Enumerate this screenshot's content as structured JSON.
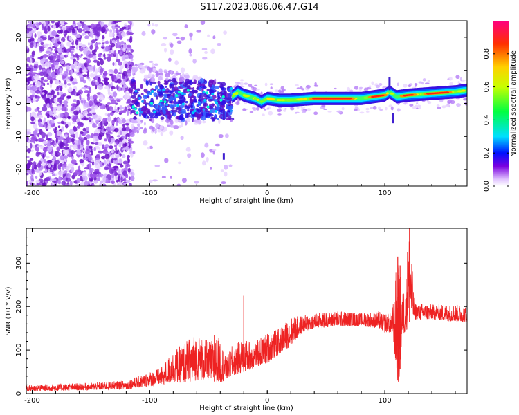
{
  "title": "S117.2023.086.06.47.G14",
  "chart_data": [
    {
      "type": "heatmap",
      "xlabel": "Height of straight line (km)",
      "ylabel": "Frequency (Hz)",
      "xlim": [
        -205,
        170
      ],
      "ylim": [
        -25,
        25
      ],
      "xticks": [
        -200,
        -100,
        0,
        100
      ],
      "yticks": [
        -20,
        -10,
        0,
        10,
        20
      ],
      "colorbar": {
        "label": "Normalized spectral amplitude",
        "range": [
          0,
          1
        ],
        "ticks": [
          "0.0",
          "0.2",
          "0.4",
          "0.6",
          "0.8"
        ],
        "colors": [
          "#ffffff",
          "#e2c6ff",
          "#7a00e0",
          "#0010ff",
          "#00e0ff",
          "#00ff40",
          "#c8ff00",
          "#ffd000",
          "#ff3000",
          "#ff0080"
        ]
      },
      "noise_region_x": [
        -205,
        -115
      ],
      "transition_region_x": [
        -115,
        -30
      ],
      "ridge": {
        "x": [
          -30,
          -25,
          -20,
          -15,
          -10,
          -5,
          0,
          10,
          20,
          40,
          60,
          80,
          100,
          104,
          110,
          120,
          140,
          160,
          170
        ],
        "y": [
          2,
          3.5,
          2.5,
          2,
          1.5,
          0.5,
          1.5,
          1,
          1,
          1.5,
          1.5,
          1.5,
          2.5,
          3.5,
          2,
          2.5,
          3,
          3.5,
          4
        ],
        "peak_x": [
          [
            38,
            72
          ],
          [
            88,
            100
          ],
          [
            115,
            125
          ],
          [
            135,
            155
          ]
        ]
      }
    },
    {
      "type": "line",
      "color": "#ee2222",
      "xlabel": "Height of straight line (km)",
      "ylabel": "SNR (10 * v/v)",
      "xlim": [
        -205,
        170
      ],
      "ylim": [
        0,
        380
      ],
      "xticks": [
        -200,
        -100,
        0,
        100
      ],
      "yticks": [
        0,
        100,
        200,
        300
      ],
      "envelope": {
        "x": [
          -205,
          -150,
          -120,
          -105,
          -90,
          -80,
          -70,
          -60,
          -50,
          -40,
          -35,
          -30,
          -20,
          -10,
          0,
          10,
          20,
          30,
          40,
          60,
          80,
          95,
          100,
          105,
          108,
          110,
          112,
          115,
          118,
          120,
          122,
          125,
          140,
          160,
          170
        ],
        "low": [
          5,
          8,
          10,
          15,
          20,
          25,
          25,
          30,
          30,
          25,
          30,
          40,
          50,
          60,
          70,
          90,
          110,
          140,
          150,
          155,
          155,
          150,
          140,
          140,
          100,
          40,
          20,
          130,
          140,
          160,
          170,
          170,
          170,
          165,
          165
        ],
        "high": [
          20,
          25,
          30,
          45,
          60,
          100,
          120,
          140,
          120,
          130,
          80,
          110,
          125,
          120,
          140,
          150,
          175,
          180,
          185,
          190,
          185,
          190,
          185,
          185,
          220,
          310,
          300,
          230,
          270,
          380,
          360,
          210,
          205,
          205,
          200
        ]
      },
      "spikes": [
        {
          "x": -20,
          "y": 225
        },
        {
          "x": -45,
          "y": 135
        },
        {
          "x": 111,
          "y": 315
        },
        {
          "x": 113,
          "y": 295
        },
        {
          "x": 121,
          "y": 380
        }
      ]
    }
  ]
}
